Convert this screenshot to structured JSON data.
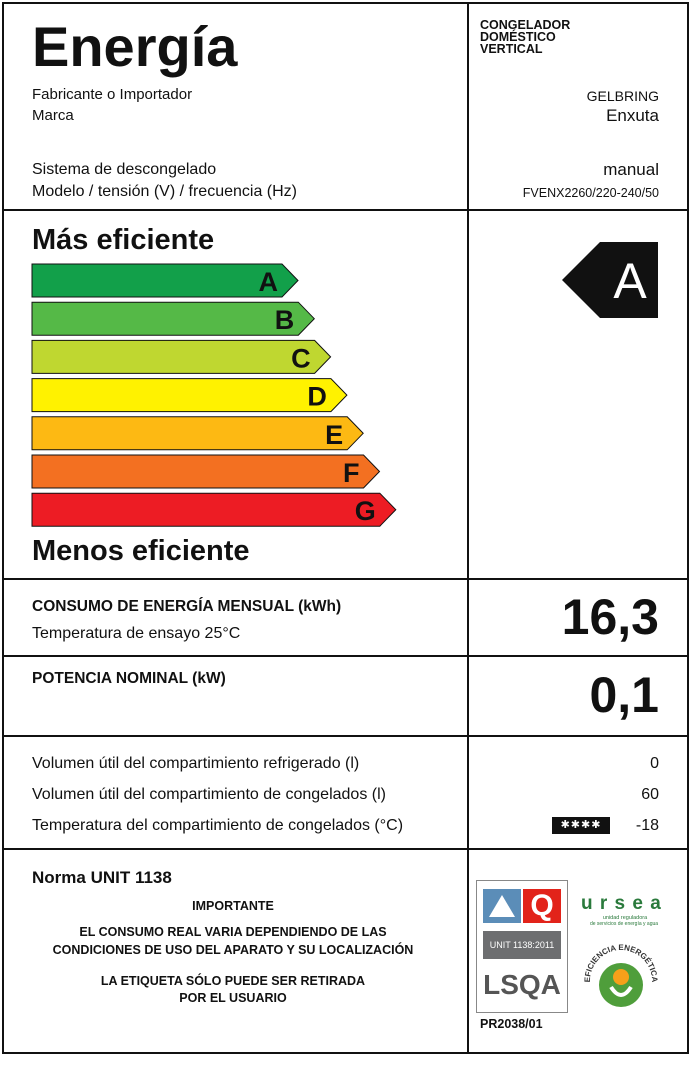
{
  "label": {
    "title": "Energía",
    "product_type": [
      "CONGELADOR",
      "DOMÉSTICO",
      "VERTICAL"
    ],
    "manufacturer_label": "Fabricante o Importador",
    "manufacturer_value": "GELBRING",
    "brand_label": "Marca",
    "brand_value": "Enxuta",
    "defrost_label": "Sistema de descongelado",
    "defrost_value": "manual",
    "model_label": "Modelo / tensión (V) / frecuencia (Hz)",
    "model_value": "FVENX2260/220-240/50"
  },
  "scale": {
    "top_label": "Más eficiente",
    "bottom_label": "Menos eficiente",
    "classes": [
      {
        "letter": "A",
        "color": "#12a04a"
      },
      {
        "letter": "B",
        "color": "#55b947"
      },
      {
        "letter": "C",
        "color": "#bfd730"
      },
      {
        "letter": "D",
        "color": "#fff200"
      },
      {
        "letter": "E",
        "color": "#fdb913"
      },
      {
        "letter": "F",
        "color": "#f37021"
      },
      {
        "letter": "G",
        "color": "#ed1c24"
      }
    ],
    "rating": "A"
  },
  "consumption": {
    "label": "CONSUMO DE ENERGÍA MENSUAL (kWh)",
    "test_temp": "Temperatura de ensayo 25°C",
    "value": "16,3"
  },
  "power": {
    "label": "POTENCIA NOMINAL (kW)",
    "value": "0,1"
  },
  "volumes": {
    "refrigerated_label": "Volumen útil del compartimiento refrigerado (l)",
    "refrigerated_value": "0",
    "freezer_label": "Volumen útil del compartimiento de congelados (l)",
    "freezer_value": "60",
    "freezer_temp_label": "Temperatura del compartimiento de congelados (°C)",
    "freezer_stars": "✱✱✱✱",
    "freezer_temp_value": "-18"
  },
  "footer": {
    "norm": "Norma UNIT 1138",
    "important": "IMPORTANTE",
    "warning_line1": "EL CONSUMO REAL VARIA DEPENDIENDO DE LAS",
    "warning_line2": "CONDICIONES DE USO DEL APARATO Y SU LOCALIZACIÓN",
    "removal_line1": "LA ETIQUETA SÓLO PUEDE SER RETIRADA",
    "removal_line2": "POR EL USUARIO",
    "lsqa_norm": "UNIT 1138:2011",
    "lsqa_name": "LSQA",
    "ursea_name": "u r s e a",
    "ursea_sub1": "unidad reguladora",
    "ursea_sub2": "de servicios de energía y agua",
    "seal_text": "EFICIENCIA ENERGÉTICA",
    "permit": "PR2038/01"
  }
}
